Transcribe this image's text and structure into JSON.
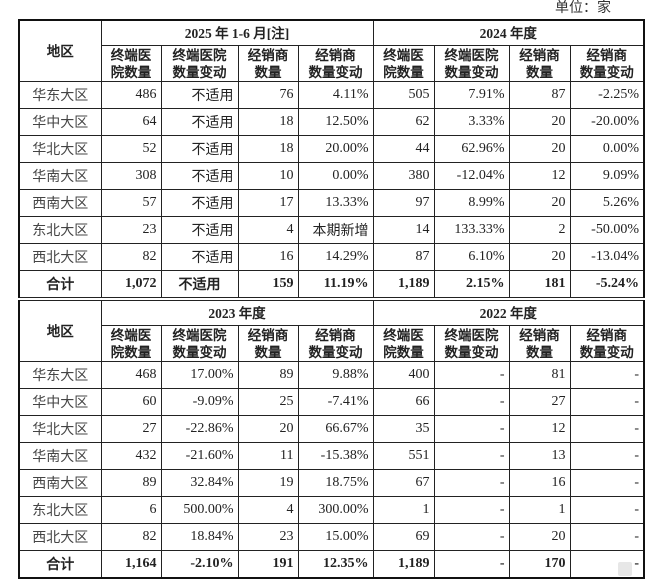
{
  "unit_label": "单位：家",
  "region_header": "地区",
  "sub_headers": [
    "终端医\n院数量",
    "终端医院\n数量变动",
    "经销商\n数量",
    "经销商\n数量变动"
  ],
  "tables": [
    {
      "periods": [
        "2025 年 1-6 月[注]",
        "2024 年度"
      ],
      "rows": [
        [
          "华东大区",
          "486",
          "不适用",
          "76",
          "4.11%",
          "505",
          "7.91%",
          "87",
          "-2.25%"
        ],
        [
          "华中大区",
          "64",
          "不适用",
          "18",
          "12.50%",
          "62",
          "3.33%",
          "20",
          "-20.00%"
        ],
        [
          "华北大区",
          "52",
          "不适用",
          "18",
          "20.00%",
          "44",
          "62.96%",
          "20",
          "0.00%"
        ],
        [
          "华南大区",
          "308",
          "不适用",
          "10",
          "0.00%",
          "380",
          "-12.04%",
          "12",
          "9.09%"
        ],
        [
          "西南大区",
          "57",
          "不适用",
          "17",
          "13.33%",
          "97",
          "8.99%",
          "20",
          "5.26%"
        ],
        [
          "东北大区",
          "23",
          "不适用",
          "4",
          "本期新增",
          "14",
          "133.33%",
          "2",
          "-50.00%"
        ],
        [
          "西北大区",
          "82",
          "不适用",
          "16",
          "14.29%",
          "87",
          "6.10%",
          "20",
          "-13.04%"
        ]
      ],
      "total": [
        "合计",
        "1,072",
        "不适用",
        "159",
        "11.19%",
        "1,189",
        "2.15%",
        "181",
        "-5.24%"
      ]
    },
    {
      "periods": [
        "2023 年度",
        "2022 年度"
      ],
      "rows": [
        [
          "华东大区",
          "468",
          "17.00%",
          "89",
          "9.88%",
          "400",
          "-",
          "81",
          "-"
        ],
        [
          "华中大区",
          "60",
          "-9.09%",
          "25",
          "-7.41%",
          "66",
          "-",
          "27",
          "-"
        ],
        [
          "华北大区",
          "27",
          "-22.86%",
          "20",
          "66.67%",
          "35",
          "-",
          "12",
          "-"
        ],
        [
          "华南大区",
          "432",
          "-21.60%",
          "11",
          "-15.38%",
          "551",
          "-",
          "13",
          "-"
        ],
        [
          "西南大区",
          "89",
          "32.84%",
          "19",
          "18.75%",
          "67",
          "-",
          "16",
          "-"
        ],
        [
          "东北大区",
          "6",
          "500.00%",
          "4",
          "300.00%",
          "1",
          "-",
          "1",
          "-"
        ],
        [
          "西北大区",
          "82",
          "18.84%",
          "23",
          "15.00%",
          "69",
          "-",
          "20",
          "-"
        ]
      ],
      "total": [
        "合计",
        "1,164",
        "-2.10%",
        "191",
        "12.35%",
        "1,189",
        "-",
        "170",
        "-"
      ]
    }
  ]
}
